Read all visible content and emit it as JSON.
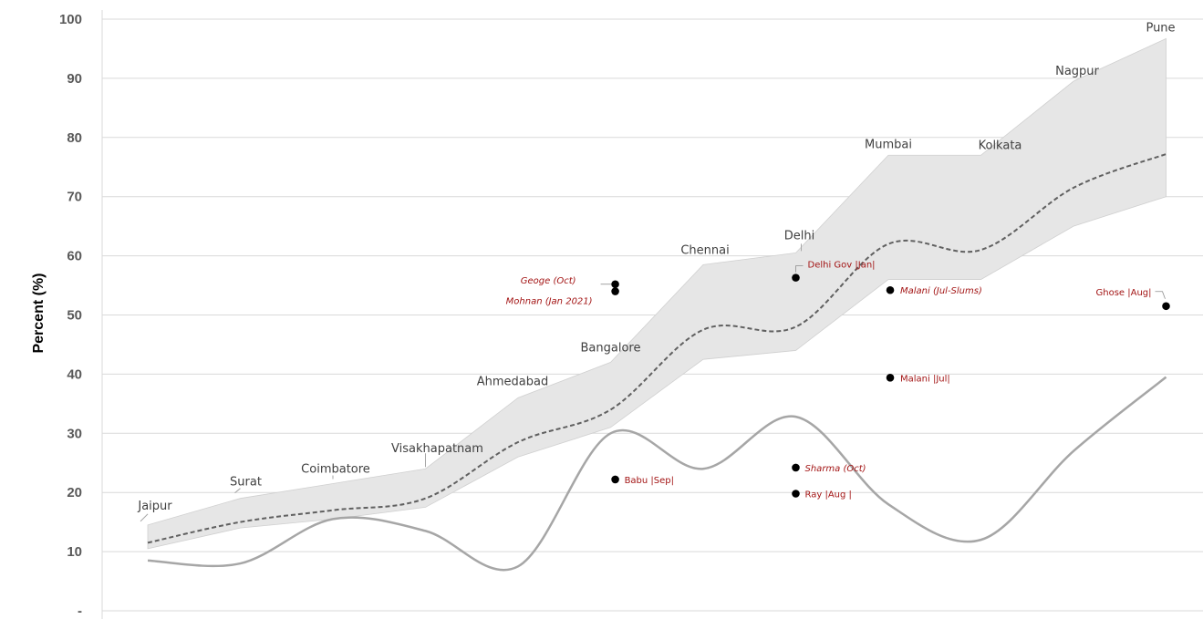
{
  "chart_data": {
    "type": "line",
    "title": "",
    "xlabel": "",
    "ylabel": "Percent (%)",
    "ylim": [
      0,
      100
    ],
    "y_ticks": [
      {
        "value": 0,
        "label": "-"
      },
      {
        "value": 10,
        "label": "10"
      },
      {
        "value": 20,
        "label": "20"
      },
      {
        "value": 30,
        "label": "30"
      },
      {
        "value": 40,
        "label": "40"
      },
      {
        "value": 50,
        "label": "50"
      },
      {
        "value": 60,
        "label": "60"
      },
      {
        "value": 70,
        "label": "70"
      },
      {
        "value": 80,
        "label": "80"
      },
      {
        "value": 90,
        "label": "90"
      },
      {
        "value": 100,
        "label": "100"
      }
    ],
    "grid": true,
    "legend": "none",
    "categories": [
      "Jaipur",
      "Surat",
      "Coimbatore",
      "Visakhapatnam",
      "Ahmedabad",
      "Bangalore",
      "Chennai",
      "Delhi",
      "Mumbai",
      "Kolkata",
      "Nagpur",
      "Pune"
    ],
    "series": [
      {
        "style": "band",
        "color": "#e6e6e6",
        "upper": [
          14.5,
          19,
          21.5,
          24,
          36,
          42,
          58.5,
          60.5,
          77,
          77,
          89.5,
          96.7
        ],
        "lower": [
          10.5,
          14,
          15.5,
          17.5,
          26,
          31,
          42.5,
          44,
          56,
          56,
          65,
          70
        ]
      },
      {
        "style": "dashed",
        "color": "#606060",
        "values": [
          11.5,
          15,
          17,
          19,
          28.5,
          34,
          47.5,
          48,
          62,
          61,
          71.5,
          77.2
        ]
      },
      {
        "style": "solid",
        "color": "#a6a6a6",
        "values": [
          8.5,
          8,
          15.5,
          13.5,
          7.5,
          30,
          24,
          32.8,
          18,
          12,
          27,
          39.5
        ]
      }
    ],
    "annotations": [
      {
        "label": "Geoge (Oct)",
        "x": 5.05,
        "y": 55.2,
        "italic": true
      },
      {
        "label": "Mohnan (Jan 2021)",
        "x": 5.05,
        "y": 54.0,
        "italic": true
      },
      {
        "label": "Delhi Gov |Jan|",
        "x": 7.0,
        "y": 56.3,
        "italic": false
      },
      {
        "label": "Malani (Jul-Slums)",
        "x": 8.02,
        "y": 54.2,
        "italic": true
      },
      {
        "label": "Malani |Jul|",
        "x": 8.02,
        "y": 39.4,
        "italic": false
      },
      {
        "label": "Ghose |Aug|",
        "x": 11.0,
        "y": 51.5,
        "italic": false
      },
      {
        "label": "Babu |Sep|",
        "x": 5.05,
        "y": 22.2,
        "italic": false
      },
      {
        "label": "Sharma (Oct)",
        "x": 7.0,
        "y": 24.2,
        "italic": true
      },
      {
        "label": "Ray |Aug |",
        "x": 7.0,
        "y": 19.8,
        "italic": false
      }
    ],
    "colors": {
      "point": "#000000",
      "annotation_text": "#a31515",
      "grid": "#d9d9d9",
      "band": "#e6e6e6"
    }
  }
}
